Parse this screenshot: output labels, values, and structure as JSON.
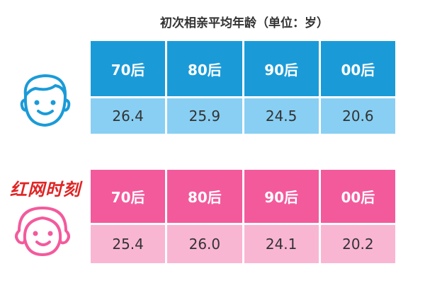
{
  "title": "初次相亲平均年龄（单位：岁）",
  "watermark": "红网时刻",
  "tables": [
    {
      "headers": [
        "70后",
        "80后",
        "90后",
        "00后"
      ],
      "values": [
        "26.4",
        "25.9",
        "24.5",
        "20.6"
      ]
    },
    {
      "headers": [
        "70后",
        "80后",
        "90后",
        "00后"
      ],
      "values": [
        "25.4",
        "26.0",
        "24.1",
        "20.2"
      ]
    }
  ]
}
